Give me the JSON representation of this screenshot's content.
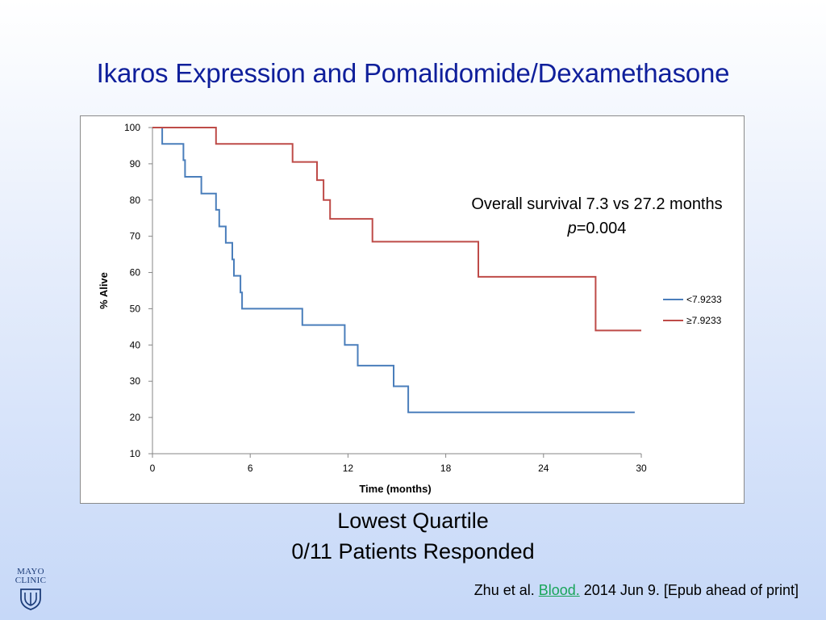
{
  "slide": {
    "title": "Ikaros Expression and Pomalidomide/Dexamethasone",
    "subtitle_line1": "Lowest Quartile",
    "subtitle_line2": "0/11 Patients Responded",
    "citation": {
      "prefix": "Zhu et al. ",
      "journal": "Blood.",
      "suffix": " 2014 Jun 9. [Epub ahead of print]"
    },
    "logo": {
      "line1": "MAYO",
      "line2": "CLINIC"
    }
  },
  "annotation": {
    "line1": "Overall survival 7.3 vs 27.2 months",
    "p_symbol": "p",
    "p_rest": "=0.004"
  },
  "chart_data": {
    "type": "line",
    "xlabel": "Time (months)",
    "ylabel": "% Alive",
    "xlim": [
      0,
      30
    ],
    "ylim": [
      10,
      100
    ],
    "xticks": [
      0,
      6,
      12,
      18,
      24,
      30
    ],
    "yticks": [
      10,
      20,
      30,
      40,
      50,
      60,
      70,
      80,
      90,
      100
    ],
    "grid": false,
    "legend_position": "right",
    "series": [
      {
        "name": "<7.9233",
        "color": "#4a7ebb",
        "step": true,
        "points": [
          [
            0.6,
            100
          ],
          [
            0.6,
            95.5
          ],
          [
            1.9,
            95.5
          ],
          [
            1.9,
            91
          ],
          [
            2.0,
            91
          ],
          [
            2.0,
            86.4
          ],
          [
            3.0,
            86.4
          ],
          [
            3.0,
            81.8
          ],
          [
            3.9,
            81.8
          ],
          [
            3.9,
            77.3
          ],
          [
            4.1,
            77.3
          ],
          [
            4.1,
            72.7
          ],
          [
            4.5,
            72.7
          ],
          [
            4.5,
            68.2
          ],
          [
            4.9,
            68.2
          ],
          [
            4.9,
            63.6
          ],
          [
            5.0,
            63.6
          ],
          [
            5.0,
            59.1
          ],
          [
            5.4,
            59.1
          ],
          [
            5.4,
            54.5
          ],
          [
            5.5,
            54.5
          ],
          [
            5.5,
            50
          ],
          [
            9.2,
            50
          ],
          [
            9.2,
            45.5
          ],
          [
            11.8,
            45.5
          ],
          [
            11.8,
            40
          ],
          [
            12.6,
            40
          ],
          [
            12.6,
            34.3
          ],
          [
            14.8,
            34.3
          ],
          [
            14.8,
            28.6
          ],
          [
            15.7,
            28.6
          ],
          [
            15.7,
            21.4
          ],
          [
            29.6,
            21.4
          ]
        ]
      },
      {
        "name": "≥7.9233",
        "color": "#be4b48",
        "step": true,
        "points": [
          [
            0,
            100
          ],
          [
            3.9,
            100
          ],
          [
            3.9,
            95.5
          ],
          [
            8.6,
            95.5
          ],
          [
            8.6,
            90.5
          ],
          [
            10.1,
            90.5
          ],
          [
            10.1,
            85.5
          ],
          [
            10.5,
            85.5
          ],
          [
            10.5,
            80
          ],
          [
            10.9,
            80
          ],
          [
            10.9,
            74.8
          ],
          [
            13.5,
            74.8
          ],
          [
            13.5,
            68.5
          ],
          [
            20.0,
            68.5
          ],
          [
            20.0,
            58.8
          ],
          [
            27.2,
            58.8
          ],
          [
            27.2,
            44
          ],
          [
            30,
            44
          ]
        ]
      }
    ]
  }
}
